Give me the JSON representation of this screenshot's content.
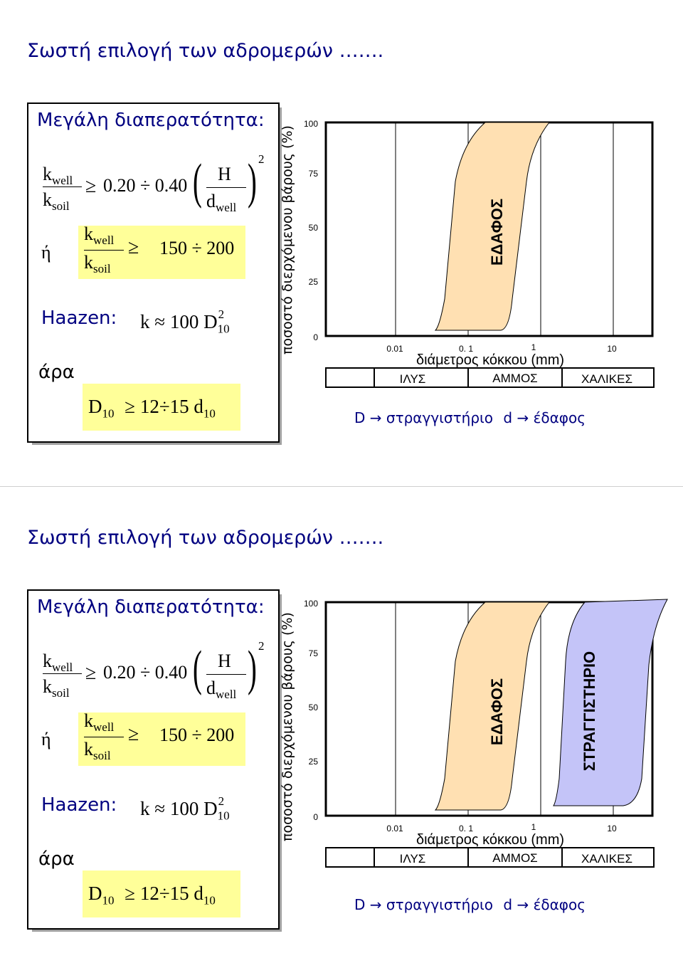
{
  "slides": [
    {
      "title": "Σωστή επιλογή των αδρομερών …….",
      "box_heading": "Μεγάλη διαπερατότητα:",
      "formula1": {
        "k": "k",
        "well": "well",
        "soil": "soil",
        "geq": "≥",
        "range": "0.20 ÷ 0.40",
        "H": "H",
        "d": "d",
        "exp": "2"
      },
      "or_word": "ή",
      "formula2": {
        "k": "k",
        "well": "well",
        "soil": "soil",
        "geq": "≥",
        "range": "150 ÷ 200"
      },
      "haazen_label": "Haazen:",
      "haazen": {
        "k": "k",
        "approx": "≈",
        "expr": "100 D",
        "sub": "10",
        "exp": "2"
      },
      "therefore_word": "άρα",
      "criterion": {
        "D": "D",
        "sub1": "10",
        "geq": "≥",
        "range": " 12÷15 d",
        "sub2": "10"
      },
      "chart": {
        "ylabel": "ποσοστό διερχόμενου βάρους (%)",
        "yticks": [
          "100",
          "75",
          "50",
          "25",
          "0"
        ],
        "xticks": [
          "0.01",
          "0. 1",
          "1",
          "10"
        ],
        "xlabel": "διάμετρος κόκκου (mm)",
        "soil_classes": [
          "ΙΛΥΣ",
          "ΑΜΜΟΣ",
          "ΧΑΛΙΚΕΣ"
        ],
        "band_labels": [
          "ΕΔΑΦΟΣ"
        ]
      },
      "legend": {
        "D": "D",
        "arrow": "→",
        "filter": "στραγγιστήριο",
        "d": "d",
        "soil": "έδαφος"
      }
    },
    {
      "title": "Σωστή επιλογή των αδρομερών …….",
      "box_heading": "Μεγάλη διαπερατότητα:",
      "formula1": {
        "k": "k",
        "well": "well",
        "soil": "soil",
        "geq": "≥",
        "range": "0.20 ÷ 0.40",
        "H": "H",
        "d": "d",
        "exp": "2"
      },
      "or_word": "ή",
      "formula2": {
        "k": "k",
        "well": "well",
        "soil": "soil",
        "geq": "≥",
        "range": "150 ÷ 200"
      },
      "haazen_label": "Haazen:",
      "haazen": {
        "k": "k",
        "approx": "≈",
        "expr": "100 D",
        "sub": "10",
        "exp": "2"
      },
      "therefore_word": "άρα",
      "criterion": {
        "D": "D",
        "sub1": "10",
        "geq": "≥",
        "range": " 12÷15 d",
        "sub2": "10"
      },
      "chart": {
        "ylabel": "ποσοστό διερχόμενου βάρους (%)",
        "yticks": [
          "100",
          "75",
          "50",
          "25",
          "0"
        ],
        "xticks": [
          "0.01",
          "0. 1",
          "1",
          "10"
        ],
        "xlabel": "διάμετρος κόκκου (mm)",
        "soil_classes": [
          "ΙΛΥΣ",
          "ΑΜΜΟΣ",
          "ΧΑΛΙΚΕΣ"
        ],
        "band_labels": [
          "ΕΔΑΦΟΣ",
          "ΣΤΡΑΓΓΙΣΤΗΡΙΟ"
        ]
      },
      "legend": {
        "D": "D",
        "arrow": "→",
        "filter": "στραγγιστήριο",
        "d": "d",
        "soil": "έδαφος"
      }
    }
  ],
  "colors": {
    "title": "#000080",
    "soil_band": "#ffe0b2",
    "filter_band": "#c4c4f8",
    "highlight": "#ffff99"
  }
}
